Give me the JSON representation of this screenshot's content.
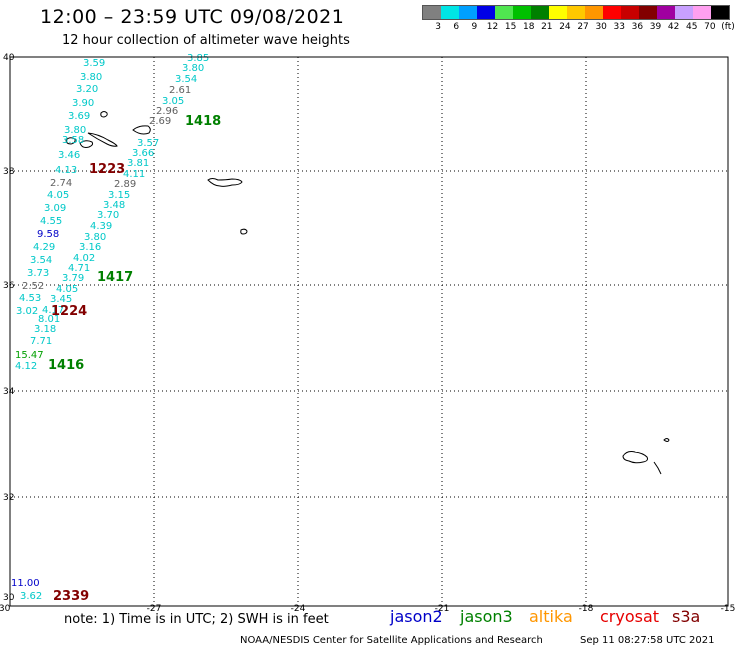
{
  "title": "12:00 – 23:59 UTC 09/08/2021",
  "subtitle": "12 hour collection of altimeter wave heights",
  "legend": {
    "colors": [
      "#808080",
      "#00e5e5",
      "#00a0ff",
      "#0000e6",
      "#50e650",
      "#00c000",
      "#008000",
      "#ffff00",
      "#ffc800",
      "#ff9600",
      "#ff0000",
      "#c80000",
      "#820000",
      "#a000a0",
      "#c8a0ff",
      "#ffa0f0",
      "#000000"
    ],
    "labels": [
      "3",
      "6",
      "9",
      "12",
      "15",
      "18",
      "21",
      "24",
      "27",
      "30",
      "33",
      "36",
      "39",
      "42",
      "45",
      "70",
      "(ft)"
    ]
  },
  "axes": {
    "x_ticks": [
      "-30",
      "-27",
      "-24",
      "-21",
      "-18",
      "-15"
    ],
    "y_ticks": [
      "40",
      "38",
      "36",
      "34",
      "32",
      "30"
    ],
    "x_range": [
      -30,
      -15
    ],
    "y_range": [
      30,
      40
    ]
  },
  "wave_heights": [
    {
      "v": "3.85",
      "c": "#00c8c8"
    },
    {
      "v": "3.80",
      "c": "#00c8c8"
    },
    {
      "v": "3.54",
      "c": "#00c8c8"
    },
    {
      "v": "2.61",
      "c": "#606060"
    },
    {
      "v": "3.05",
      "c": "#00c8c8"
    },
    {
      "v": "2.96",
      "c": "#606060"
    },
    {
      "v": "2.69",
      "c": "#606060"
    },
    {
      "v": "3.59",
      "c": "#00c8c8"
    },
    {
      "v": "3.80",
      "c": "#00c8c8"
    },
    {
      "v": "3.20",
      "c": "#00c8c8"
    },
    {
      "v": "3.90",
      "c": "#00c8c8"
    },
    {
      "v": "3.69",
      "c": "#00c8c8"
    },
    {
      "v": "3.80",
      "c": "#00c8c8"
    },
    {
      "v": "3.58",
      "c": "#00c8c8"
    },
    {
      "v": "3.46",
      "c": "#00c8c8"
    },
    {
      "v": "4.13",
      "c": "#00c8c8"
    },
    {
      "v": "2.74",
      "c": "#606060"
    },
    {
      "v": "4.05",
      "c": "#00c8c8"
    },
    {
      "v": "3.09",
      "c": "#00c8c8"
    },
    {
      "v": "4.55",
      "c": "#00c8c8"
    },
    {
      "v": "9.58",
      "c": "#0000c8"
    },
    {
      "v": "4.29",
      "c": "#00c8c8"
    },
    {
      "v": "3.54",
      "c": "#00c8c8"
    },
    {
      "v": "3.73",
      "c": "#00c8c8"
    },
    {
      "v": "2.52",
      "c": "#606060"
    },
    {
      "v": "4.53",
      "c": "#00c8c8"
    },
    {
      "v": "3.02",
      "c": "#00c8c8"
    },
    {
      "v": "4.17",
      "c": "#00c8c8"
    },
    {
      "v": "3.57",
      "c": "#00c8c8"
    },
    {
      "v": "3.66",
      "c": "#00c8c8"
    },
    {
      "v": "3.81",
      "c": "#00c8c8"
    },
    {
      "v": "4.11",
      "c": "#00c8c8"
    },
    {
      "v": "2.89",
      "c": "#606060"
    },
    {
      "v": "3.15",
      "c": "#00c8c8"
    },
    {
      "v": "3.48",
      "c": "#00c8c8"
    },
    {
      "v": "3.70",
      "c": "#00c8c8"
    },
    {
      "v": "4.39",
      "c": "#00c8c8"
    },
    {
      "v": "3.80",
      "c": "#00c8c8"
    },
    {
      "v": "3.16",
      "c": "#00c8c8"
    },
    {
      "v": "4.02",
      "c": "#00c8c8"
    },
    {
      "v": "4.71",
      "c": "#00c8c8"
    },
    {
      "v": "3.79",
      "c": "#00c8c8"
    },
    {
      "v": "4.05",
      "c": "#00c8c8"
    },
    {
      "v": "3.45",
      "c": "#00c8c8"
    },
    {
      "v": "8.01",
      "c": "#00c8c8"
    },
    {
      "v": "3.18",
      "c": "#00c8c8"
    },
    {
      "v": "7.71",
      "c": "#00c8c8"
    },
    {
      "v": "15.47",
      "c": "#00a000"
    },
    {
      "v": "4.12",
      "c": "#00c8c8"
    },
    {
      "v": "11.00",
      "c": "#0000c8"
    },
    {
      "v": "3.62",
      "c": "#00c8c8"
    }
  ],
  "track_times": [
    {
      "t": "1418",
      "c": "#008000"
    },
    {
      "t": "1223",
      "c": "#820000"
    },
    {
      "t": "1417",
      "c": "#008000"
    },
    {
      "t": "1224",
      "c": "#820000"
    },
    {
      "t": "1416",
      "c": "#008000"
    },
    {
      "t": "2339",
      "c": "#820000"
    }
  ],
  "note": "note:  1) Time is in UTC;  2) SWH is in feet",
  "satellites": [
    {
      "name": "jason2",
      "color": "#0000c8"
    },
    {
      "name": "jason3",
      "color": "#008000"
    },
    {
      "name": "altika",
      "color": "#ff9600"
    },
    {
      "name": "cryosat",
      "color": "#e60000"
    },
    {
      "name": "s3a",
      "color": "#820000"
    }
  ],
  "footer": "NOAA/NESDIS Center for Satellite Applications and Research",
  "timestamp": "Sep 11 08:27:58 UTC 2021"
}
